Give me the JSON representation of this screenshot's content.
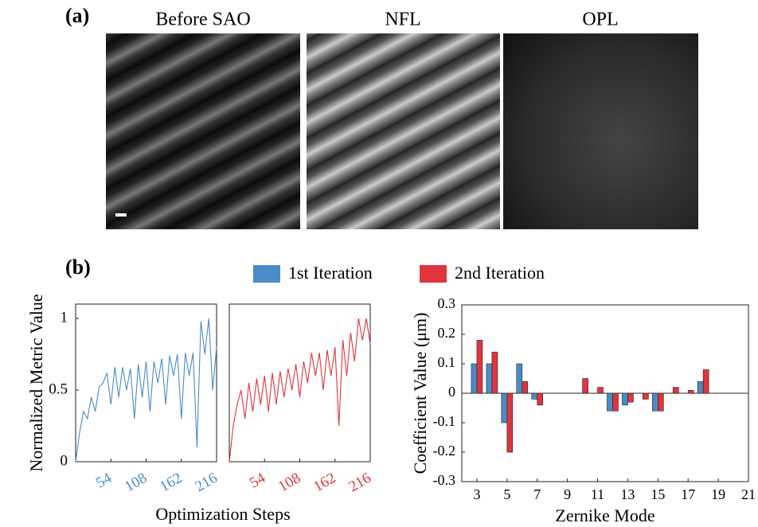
{
  "panel_a": {
    "label": "(a)",
    "images": [
      "Before SAO",
      "NFL",
      "OPL"
    ]
  },
  "panel_b": {
    "label": "(b)"
  },
  "chart_data": [
    {
      "type": "line",
      "ylabel": "Normalized Metric Value",
      "xlabel": "Optimization Steps",
      "x": [
        0,
        6,
        12,
        18,
        24,
        30,
        36,
        42,
        48,
        54,
        60,
        66,
        72,
        78,
        84,
        90,
        96,
        102,
        108,
        114,
        120,
        126,
        132,
        138,
        144,
        150,
        156,
        162,
        168,
        174,
        180,
        186,
        192,
        198,
        204,
        210,
        216
      ],
      "series": [
        {
          "color": "#4a8cc7",
          "values": [
            0,
            0.2,
            0.35,
            0.3,
            0.45,
            0.35,
            0.52,
            0.55,
            0.62,
            0.4,
            0.66,
            0.45,
            0.66,
            0.5,
            0.65,
            0.3,
            0.68,
            0.45,
            0.7,
            0.35,
            0.7,
            0.55,
            0.72,
            0.4,
            0.74,
            0.6,
            0.75,
            0.3,
            0.76,
            0.6,
            0.76,
            0.1,
            0.98,
            0.75,
            1.0,
            0.5,
            0.8
          ]
        }
      ],
      "xlim": [
        0,
        216
      ],
      "ylim": [
        0,
        1.1
      ],
      "xticks": [
        54,
        108,
        162,
        216
      ],
      "yticks": [
        0,
        0.5,
        1
      ]
    },
    {
      "type": "line",
      "x": [
        0,
        6,
        12,
        18,
        24,
        30,
        36,
        42,
        48,
        54,
        60,
        66,
        72,
        78,
        84,
        90,
        96,
        102,
        108,
        114,
        120,
        126,
        132,
        138,
        144,
        150,
        156,
        162,
        168,
        174,
        180,
        186,
        192,
        198,
        204,
        210,
        216
      ],
      "series": [
        {
          "color": "#e0343e",
          "values": [
            0,
            0.25,
            0.4,
            0.5,
            0.3,
            0.55,
            0.35,
            0.58,
            0.4,
            0.6,
            0.35,
            0.62,
            0.4,
            0.63,
            0.45,
            0.65,
            0.5,
            0.68,
            0.45,
            0.7,
            0.55,
            0.76,
            0.6,
            0.76,
            0.5,
            0.78,
            0.6,
            0.8,
            0.25,
            0.85,
            0.6,
            0.9,
            0.7,
            1.0,
            0.85,
            1.0,
            0.82
          ]
        }
      ],
      "xlim": [
        0,
        216
      ],
      "ylim": [
        0,
        1.1
      ],
      "xticks": [
        54,
        108,
        162,
        216
      ]
    },
    {
      "type": "bar",
      "ylabel": "Coefficient Value (μm)",
      "xlabel": "Zernike Mode",
      "x": [
        3,
        4,
        5,
        6,
        7,
        8,
        9,
        10,
        11,
        12,
        13,
        14,
        15,
        16,
        17,
        18,
        19,
        20,
        21
      ],
      "series": [
        {
          "name": "1st Iteration",
          "color": "#4a8cc7",
          "values": [
            0.1,
            0.1,
            -0.1,
            0.1,
            -0.02,
            0,
            0,
            0,
            0,
            -0.06,
            -0.04,
            0,
            -0.06,
            0,
            0,
            0.04,
            0,
            0,
            0
          ]
        },
        {
          "name": "2nd Iteration",
          "color": "#e0343e",
          "values": [
            0.18,
            0.14,
            -0.2,
            0.04,
            -0.04,
            0,
            0,
            0.05,
            0.02,
            -0.06,
            -0.03,
            -0.02,
            -0.06,
            0.02,
            0.01,
            0.08,
            0,
            0,
            0
          ]
        }
      ],
      "xlim": [
        2,
        21
      ],
      "ylim": [
        -0.3,
        0.3
      ],
      "xticks": [
        3,
        5,
        7,
        9,
        11,
        13,
        15,
        17,
        19,
        21
      ],
      "yticks": [
        -0.3,
        -0.2,
        -0.1,
        0,
        0.1,
        0.2,
        0.3
      ]
    }
  ]
}
